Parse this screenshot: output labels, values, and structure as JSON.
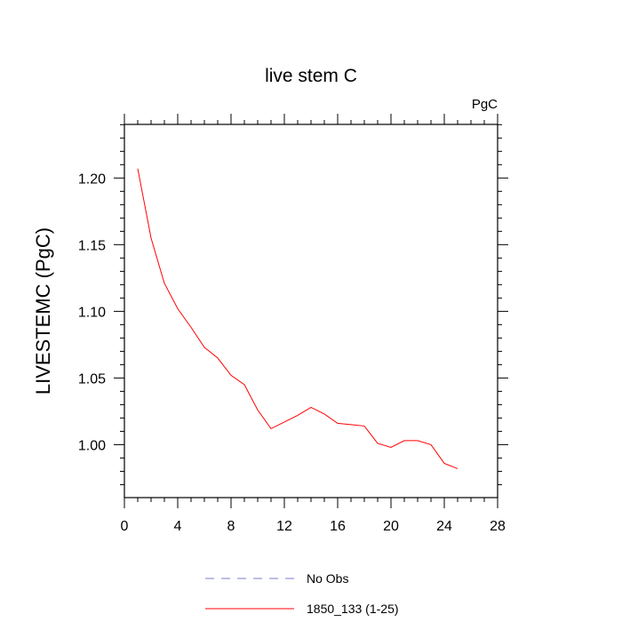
{
  "chart_data": {
    "type": "line",
    "title": "live stem C",
    "units_label": "PgC",
    "ylabel": "LIVESTEMC  (PgC)",
    "xlabel": "",
    "xlim": [
      0,
      28
    ],
    "ylim": [
      0.9603,
      1.2402
    ],
    "x_ticks": [
      0,
      4,
      8,
      12,
      16,
      20,
      24,
      28
    ],
    "x_tick_labels": [
      "0",
      "4",
      "8",
      "12",
      "16",
      "20",
      "24",
      "28"
    ],
    "y_ticks": [
      1.0,
      1.05,
      1.1,
      1.15,
      1.2
    ],
    "y_tick_labels": [
      "1.00",
      "1.05",
      "1.10",
      "1.15",
      "1.20"
    ],
    "grid": false,
    "legend_position": "bottom",
    "series": [
      {
        "name": "No Obs",
        "color": "#7b7bd6",
        "dash": "dashed",
        "x": [],
        "y": []
      },
      {
        "name": "1850_133 (1-25)",
        "color": "#ff0000",
        "dash": "solid",
        "x": [
          1,
          2,
          3,
          4,
          5,
          6,
          7,
          8,
          9,
          10,
          11,
          12,
          13,
          14,
          15,
          16,
          17,
          18,
          19,
          20,
          21,
          22,
          23,
          24,
          25
        ],
        "y": [
          1.207,
          1.155,
          1.121,
          1.102,
          1.088,
          1.073,
          1.065,
          1.052,
          1.045,
          1.026,
          1.012,
          1.017,
          1.022,
          1.028,
          1.023,
          1.016,
          1.015,
          1.014,
          1.001,
          0.998,
          1.003,
          1.003,
          1.0,
          0.986,
          0.982
        ]
      }
    ]
  }
}
